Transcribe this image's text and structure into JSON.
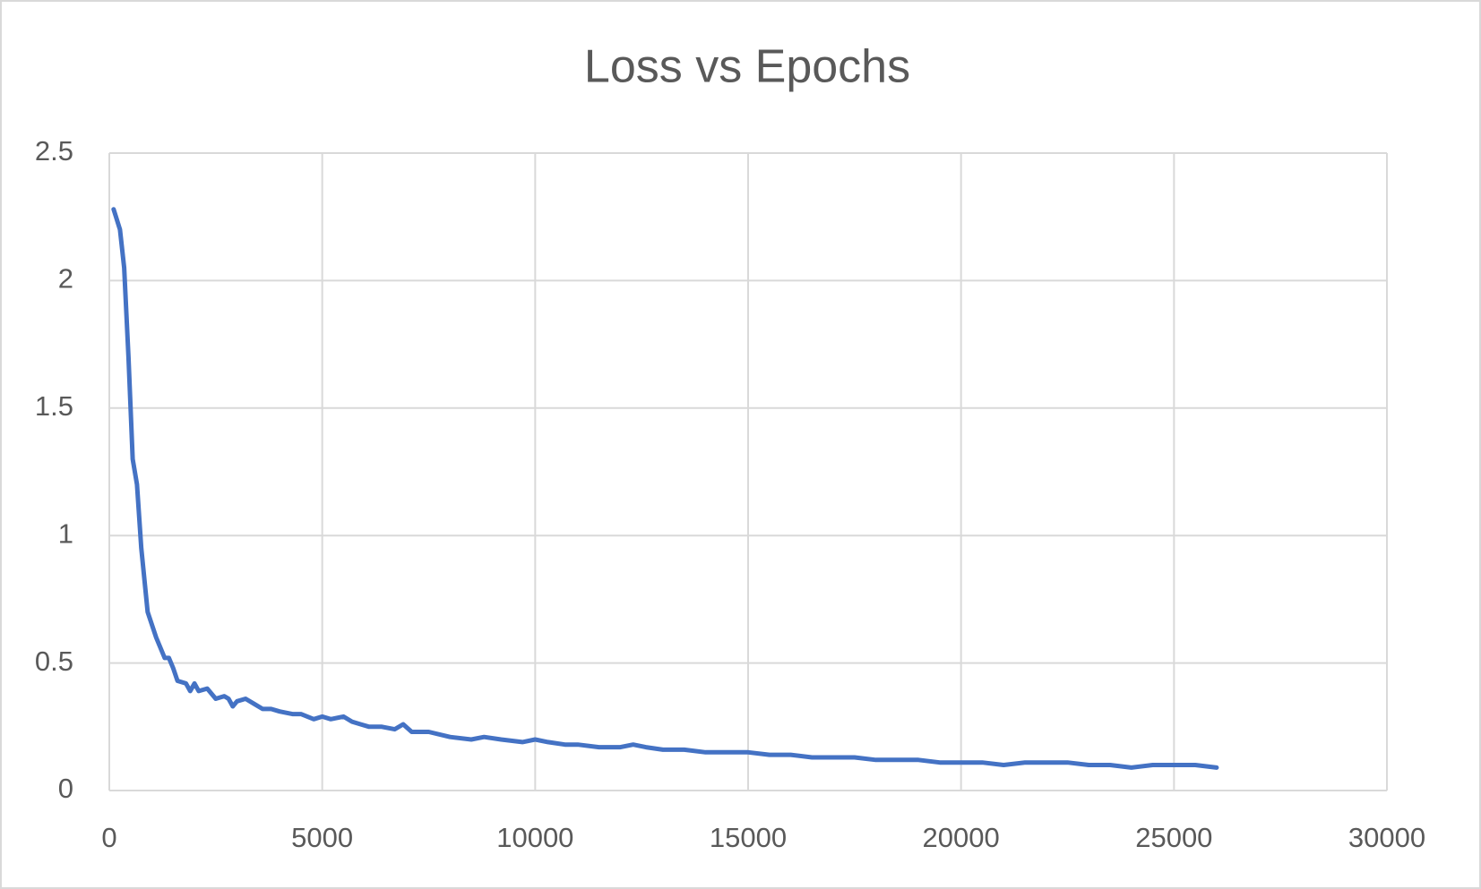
{
  "chart_data": {
    "type": "line",
    "title": "Loss vs Epochs",
    "x": [
      100,
      250,
      350,
      450,
      550,
      650,
      750,
      900,
      1100,
      1300,
      1400,
      1500,
      1600,
      1800,
      1900,
      2000,
      2100,
      2300,
      2500,
      2700,
      2800,
      2900,
      3000,
      3200,
      3400,
      3600,
      3800,
      4000,
      4300,
      4500,
      4800,
      5000,
      5200,
      5500,
      5700,
      5900,
      6100,
      6400,
      6700,
      6900,
      7100,
      7500,
      8000,
      8500,
      8800,
      9200,
      9700,
      10000,
      10300,
      10700,
      11000,
      11500,
      12000,
      12300,
      12600,
      13000,
      13500,
      14000,
      14500,
      15000,
      15500,
      16000,
      16500,
      17000,
      17500,
      18000,
      18500,
      19000,
      19500,
      20000,
      20500,
      21000,
      21500,
      22000,
      22500,
      23000,
      23500,
      24000,
      24500,
      25000,
      25500,
      26000
    ],
    "series": [
      {
        "color": "#4472c4",
        "values": [
          2.28,
          2.2,
          2.05,
          1.7,
          1.3,
          1.2,
          0.95,
          0.7,
          0.6,
          0.52,
          0.52,
          0.48,
          0.43,
          0.42,
          0.39,
          0.42,
          0.39,
          0.4,
          0.36,
          0.37,
          0.36,
          0.33,
          0.35,
          0.36,
          0.34,
          0.32,
          0.32,
          0.31,
          0.3,
          0.3,
          0.28,
          0.29,
          0.28,
          0.29,
          0.27,
          0.26,
          0.25,
          0.25,
          0.24,
          0.26,
          0.23,
          0.23,
          0.21,
          0.2,
          0.21,
          0.2,
          0.19,
          0.2,
          0.19,
          0.18,
          0.18,
          0.17,
          0.17,
          0.18,
          0.17,
          0.16,
          0.16,
          0.15,
          0.15,
          0.15,
          0.14,
          0.14,
          0.13,
          0.13,
          0.13,
          0.12,
          0.12,
          0.12,
          0.11,
          0.11,
          0.11,
          0.1,
          0.11,
          0.11,
          0.11,
          0.1,
          0.1,
          0.09,
          0.1,
          0.1,
          0.1,
          0.09
        ]
      }
    ],
    "xlim": [
      0,
      30000
    ],
    "xticks": [
      0,
      5000,
      10000,
      15000,
      20000,
      25000,
      30000
    ],
    "ylim": [
      0,
      2.5
    ],
    "yticks": [
      0,
      0.5,
      1,
      1.5,
      2,
      2.5
    ],
    "grid": true
  }
}
